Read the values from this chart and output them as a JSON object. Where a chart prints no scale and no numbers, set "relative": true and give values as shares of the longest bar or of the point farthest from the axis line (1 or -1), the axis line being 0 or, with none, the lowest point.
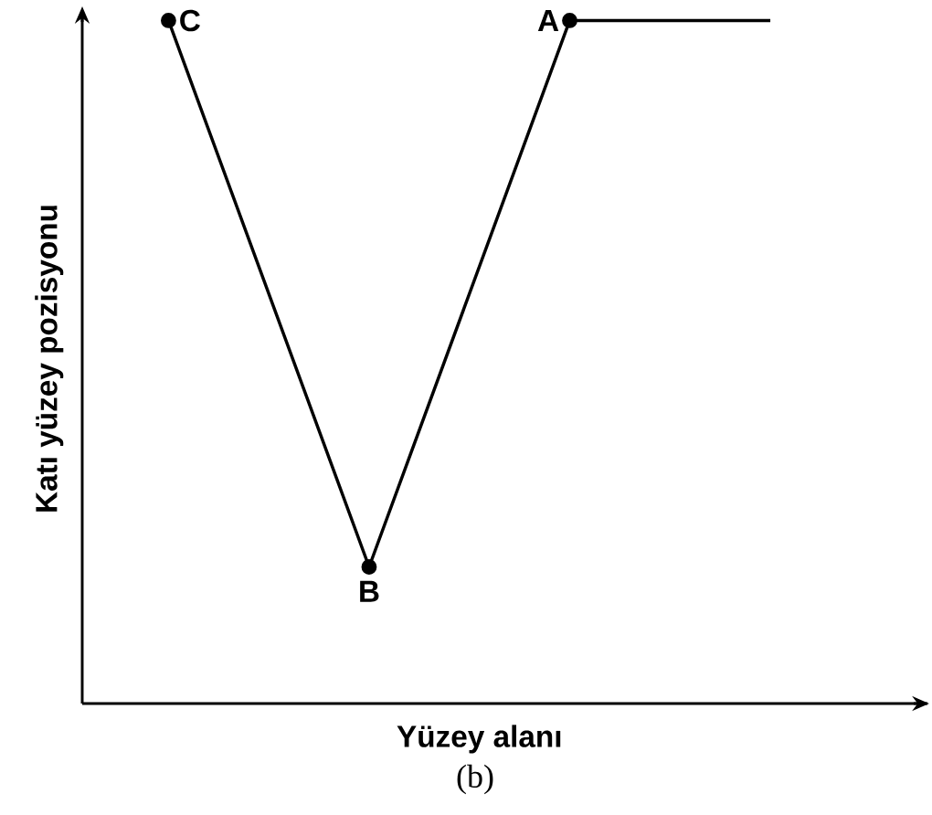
{
  "chart_data": {
    "type": "line",
    "relative": true,
    "xlabel": "Yüzey alanı",
    "ylabel": "Katı yüzey pozisyonu",
    "annotations": [
      "(b)",
      "C",
      "B",
      "A"
    ],
    "categories": [
      null,
      null,
      null,
      null
    ],
    "marker": "none",
    "line_style": "solid",
    "series": [
      {
        "color": "#000000",
        "marker": "circle",
        "values": [
          1,
          0.2,
          1,
          null
        ]
      },
      {
        "color": "#000000",
        "values": [
          null,
          null,
          1,
          1
        ]
      }
    ]
  }
}
